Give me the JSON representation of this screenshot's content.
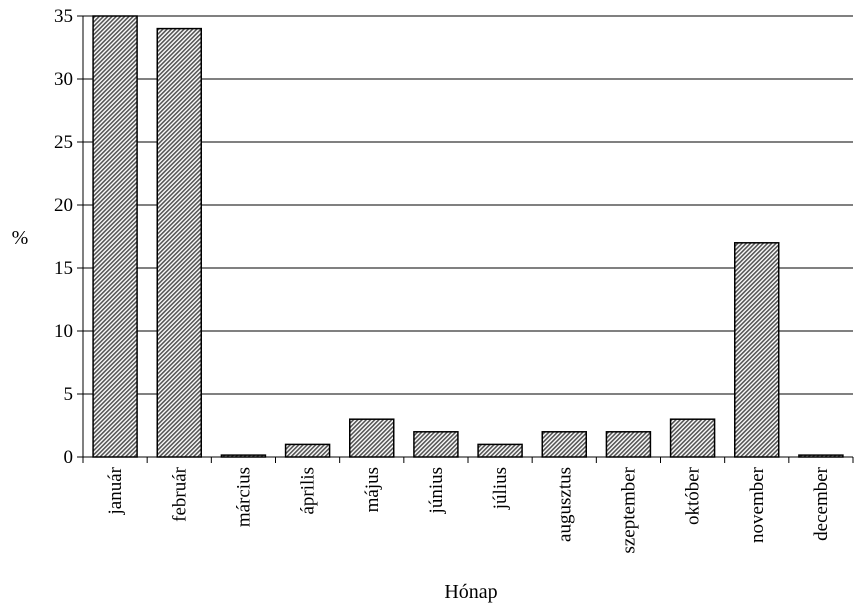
{
  "chart_data": {
    "type": "bar",
    "categories": [
      "január",
      "február",
      "március",
      "április",
      "május",
      "június",
      "július",
      "augusztus",
      "szeptember",
      "október",
      "november",
      "december"
    ],
    "values": [
      35,
      34,
      0.15,
      1,
      3,
      2,
      1,
      2,
      2,
      3,
      17,
      0.15
    ],
    "xlabel": "Hónap",
    "ylabel": "%",
    "ylim": [
      0,
      35
    ],
    "yticks": [
      "0",
      "5",
      "10",
      "15",
      "20",
      "25",
      "30",
      "35"
    ],
    "grid": true,
    "legend": "none",
    "bar_fill": "#8c8c8c",
    "bar_outline": "#000000"
  }
}
